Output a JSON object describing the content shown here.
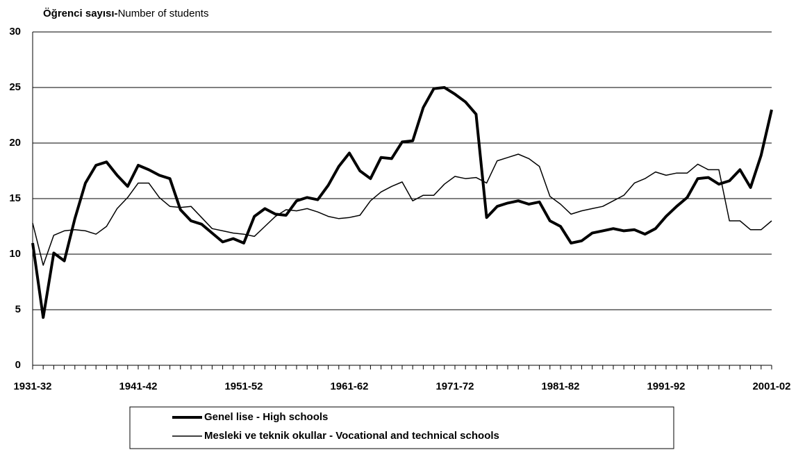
{
  "chart_data": {
    "type": "line",
    "ylabel": [
      "Öğrenci sayısı-",
      "Number of students"
    ],
    "categories": [
      "1931-32",
      null,
      null,
      null,
      null,
      null,
      null,
      null,
      null,
      null,
      "1941-42",
      null,
      null,
      null,
      null,
      null,
      null,
      null,
      null,
      null,
      "1951-52",
      null,
      null,
      null,
      null,
      null,
      null,
      null,
      null,
      null,
      "1961-62",
      null,
      null,
      null,
      null,
      null,
      null,
      null,
      null,
      null,
      "1971-72",
      null,
      null,
      null,
      null,
      null,
      null,
      null,
      null,
      null,
      "1981-82",
      null,
      null,
      null,
      null,
      null,
      null,
      null,
      null,
      null,
      "1991-92",
      null,
      null,
      null,
      null,
      null,
      null,
      null,
      null,
      null,
      "2001-02"
    ],
    "series": [
      {
        "name": "Genel lise - High schools",
        "color": "#000000",
        "width": 4,
        "values": [
          11.0,
          4.3,
          10.1,
          9.4,
          13.2,
          16.4,
          18.0,
          18.3,
          17.1,
          16.1,
          18.0,
          17.6,
          17.1,
          16.8,
          14.0,
          13.0,
          12.7,
          11.9,
          11.1,
          11.4,
          11.0,
          13.4,
          14.1,
          13.6,
          13.5,
          14.8,
          15.1,
          14.9,
          16.2,
          17.9,
          19.1,
          17.5,
          16.8,
          18.7,
          18.6,
          20.1,
          20.2,
          23.2,
          24.9,
          25.0,
          24.4,
          23.7,
          22.6,
          13.3,
          14.3,
          14.6,
          14.8,
          14.5,
          14.7,
          13.0,
          12.5,
          11.0,
          11.2,
          11.9,
          12.1,
          12.3,
          12.1,
          12.2,
          11.8,
          12.3,
          13.4,
          14.3,
          15.1,
          16.8,
          16.9,
          16.3,
          16.6,
          17.6,
          16.0,
          18.9,
          23.0
        ]
      },
      {
        "name": "Mesleki ve teknik okullar - Vocational and technical schools",
        "color": "#000000",
        "width": 1.5,
        "values": [
          12.8,
          9.0,
          11.7,
          12.1,
          12.2,
          12.1,
          11.8,
          12.5,
          14.1,
          15.1,
          16.4,
          16.4,
          15.1,
          14.3,
          14.2,
          14.3,
          13.3,
          12.3,
          12.1,
          11.9,
          11.8,
          11.6,
          12.5,
          13.4,
          14.0,
          13.9,
          14.1,
          13.8,
          13.4,
          13.2,
          13.3,
          13.5,
          14.8,
          15.6,
          16.1,
          16.5,
          14.8,
          15.3,
          15.3,
          16.3,
          17.0,
          16.8,
          16.9,
          16.4,
          18.4,
          18.7,
          19.0,
          18.6,
          17.9,
          15.2,
          14.5,
          13.6,
          13.9,
          14.1,
          14.3,
          14.8,
          15.3,
          16.4,
          16.8,
          17.4,
          17.1,
          17.3,
          17.3,
          18.1,
          17.6,
          17.6,
          13.0,
          13.0,
          12.2,
          12.2,
          13.0
        ]
      }
    ],
    "ylim": [
      0,
      30
    ],
    "yticks": [
      0,
      5,
      10,
      15,
      20,
      25,
      30
    ],
    "grid": true,
    "legend": "bottom"
  }
}
